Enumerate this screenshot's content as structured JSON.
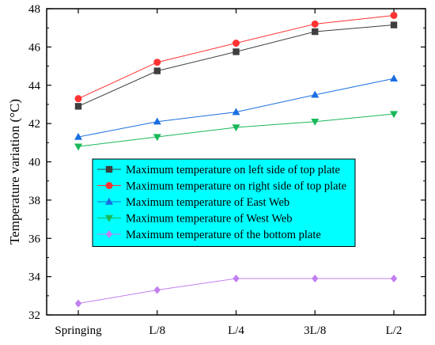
{
  "chart_data": {
    "type": "line",
    "title": "",
    "xlabel": "",
    "ylabel": "Temperature variation (°C)",
    "categories": [
      "Springing",
      "L/8",
      "L/4",
      "3L/8",
      "L/2"
    ],
    "ylim": [
      32,
      48
    ],
    "yticks": [
      32,
      34,
      36,
      38,
      40,
      42,
      44,
      46,
      48
    ],
    "grid": false,
    "legend_position": "center-left",
    "legend_background": "#00ffff",
    "series": [
      {
        "name": "Maximum temperature on left side of top plate",
        "values": [
          42.9,
          44.75,
          45.75,
          46.8,
          47.15
        ],
        "color": "#3f3f3f",
        "marker": "square"
      },
      {
        "name": "Maximum temperature on right side of top plate",
        "values": [
          43.3,
          45.2,
          46.2,
          47.2,
          47.65
        ],
        "color": "#ff3333",
        "marker": "circle"
      },
      {
        "name": "Maximum temperature of East Web",
        "values": [
          41.3,
          42.1,
          42.6,
          43.5,
          44.35
        ],
        "color": "#1a6fe0",
        "marker": "triangle-up"
      },
      {
        "name": "Maximum temperature of West Web",
        "values": [
          40.8,
          41.3,
          41.8,
          42.1,
          42.5
        ],
        "color": "#1ab85a",
        "marker": "triangle-down"
      },
      {
        "name": "Maximum temperature of the bottom plate",
        "values": [
          32.6,
          33.3,
          33.9,
          33.9,
          33.9
        ],
        "color": "#c27ff0",
        "marker": "diamond"
      }
    ]
  }
}
